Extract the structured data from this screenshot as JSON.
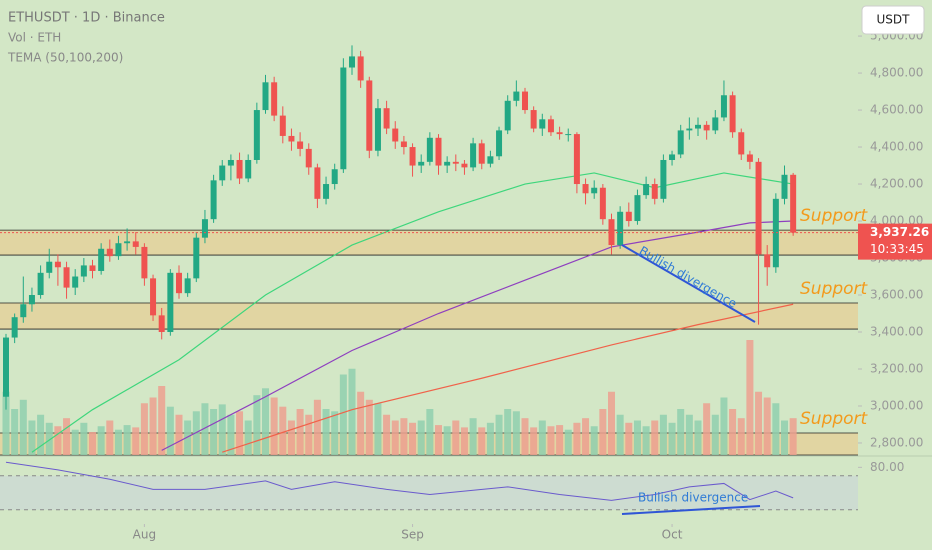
{
  "chart_data": {
    "type": "candlestick",
    "title": "ETHUSDT · 1D · Binance",
    "volume_label": "Vol · ETH",
    "ma_label": "TEMA (50,100,200)",
    "currency_button": "USDT",
    "ylim": [
      2735,
      5195
    ],
    "yticks": [
      {
        "value": 2800,
        "label": "2,800.00"
      },
      {
        "value": 3000,
        "label": "3,000.00"
      },
      {
        "value": 3200,
        "label": "3,200.00"
      },
      {
        "value": 3400,
        "label": "3,400.00"
      },
      {
        "value": 3600,
        "label": "3,600.00"
      },
      {
        "value": 3800,
        "label": "3,800.00"
      },
      {
        "value": 4000,
        "label": "4,000.00"
      },
      {
        "value": 4200,
        "label": "4,200.00"
      },
      {
        "value": 4400,
        "label": "4,400.00"
      },
      {
        "value": 4600,
        "label": "4,600.00"
      },
      {
        "value": 4800,
        "label": "4,800.00"
      },
      {
        "value": 5000,
        "label": "5,000.00"
      }
    ],
    "xticks": [
      {
        "value": 16,
        "label": "Aug"
      },
      {
        "value": 47,
        "label": "Sep"
      },
      {
        "value": 77,
        "label": "Oct"
      }
    ],
    "up_color": "#22a884",
    "down_color": "#ef5350",
    "candles": [
      [
        3050,
        3390,
        2980,
        3370
      ],
      [
        3370,
        3500,
        3340,
        3480
      ],
      [
        3480,
        3700,
        3450,
        3550
      ],
      [
        3550,
        3640,
        3510,
        3600
      ],
      [
        3600,
        3760,
        3580,
        3720
      ],
      [
        3720,
        3850,
        3690,
        3780
      ],
      [
        3780,
        3820,
        3650,
        3750
      ],
      [
        3750,
        3780,
        3580,
        3640
      ],
      [
        3640,
        3740,
        3600,
        3700
      ],
      [
        3700,
        3800,
        3670,
        3760
      ],
      [
        3760,
        3790,
        3690,
        3730
      ],
      [
        3730,
        3880,
        3710,
        3850
      ],
      [
        3850,
        3900,
        3780,
        3810
      ],
      [
        3810,
        3920,
        3790,
        3880
      ],
      [
        3880,
        3960,
        3840,
        3890
      ],
      [
        3890,
        3940,
        3820,
        3860
      ],
      [
        3860,
        3880,
        3650,
        3690
      ],
      [
        3690,
        3710,
        3460,
        3490
      ],
      [
        3490,
        3530,
        3360,
        3400
      ],
      [
        3400,
        3740,
        3380,
        3720
      ],
      [
        3720,
        3760,
        3580,
        3610
      ],
      [
        3610,
        3720,
        3590,
        3690
      ],
      [
        3690,
        3940,
        3670,
        3910
      ],
      [
        3910,
        4060,
        3880,
        4010
      ],
      [
        4010,
        4250,
        3990,
        4220
      ],
      [
        4220,
        4330,
        4190,
        4300
      ],
      [
        4300,
        4360,
        4220,
        4330
      ],
      [
        4330,
        4370,
        4200,
        4230
      ],
      [
        4230,
        4360,
        4210,
        4330
      ],
      [
        4330,
        4640,
        4310,
        4600
      ],
      [
        4600,
        4790,
        4580,
        4750
      ],
      [
        4750,
        4780,
        4540,
        4570
      ],
      [
        4570,
        4620,
        4420,
        4460
      ],
      [
        4460,
        4500,
        4380,
        4430
      ],
      [
        4430,
        4480,
        4350,
        4390
      ],
      [
        4390,
        4420,
        4250,
        4290
      ],
      [
        4290,
        4310,
        4070,
        4120
      ],
      [
        4120,
        4240,
        4090,
        4200
      ],
      [
        4200,
        4310,
        4170,
        4280
      ],
      [
        4280,
        4880,
        4260,
        4830
      ],
      [
        4830,
        4950,
        4790,
        4890
      ],
      [
        4890,
        4920,
        4720,
        4760
      ],
      [
        4760,
        4780,
        4340,
        4380
      ],
      [
        4380,
        4660,
        4350,
        4610
      ],
      [
        4610,
        4650,
        4470,
        4500
      ],
      [
        4500,
        4540,
        4390,
        4430
      ],
      [
        4430,
        4460,
        4360,
        4400
      ],
      [
        4400,
        4420,
        4240,
        4300
      ],
      [
        4300,
        4360,
        4260,
        4320
      ],
      [
        4320,
        4480,
        4300,
        4450
      ],
      [
        4450,
        4470,
        4250,
        4300
      ],
      [
        4300,
        4350,
        4260,
        4320
      ],
      [
        4320,
        4360,
        4270,
        4310
      ],
      [
        4310,
        4330,
        4250,
        4290
      ],
      [
        4290,
        4450,
        4270,
        4420
      ],
      [
        4420,
        4440,
        4280,
        4310
      ],
      [
        4310,
        4380,
        4290,
        4350
      ],
      [
        4350,
        4510,
        4330,
        4490
      ],
      [
        4490,
        4680,
        4470,
        4650
      ],
      [
        4650,
        4760,
        4620,
        4700
      ],
      [
        4700,
        4720,
        4580,
        4600
      ],
      [
        4600,
        4620,
        4480,
        4500
      ],
      [
        4500,
        4580,
        4460,
        4550
      ],
      [
        4550,
        4570,
        4460,
        4480
      ],
      [
        4480,
        4510,
        4440,
        4470
      ],
      [
        4470,
        4500,
        4430,
        4470
      ],
      [
        4470,
        4480,
        4150,
        4200
      ],
      [
        4200,
        4230,
        4090,
        4150
      ],
      [
        4150,
        4220,
        4120,
        4180
      ],
      [
        4180,
        4200,
        3980,
        4010
      ],
      [
        4010,
        4040,
        3820,
        3870
      ],
      [
        3870,
        4080,
        3850,
        4050
      ],
      [
        4050,
        4100,
        3970,
        4000
      ],
      [
        4000,
        4170,
        3980,
        4140
      ],
      [
        4140,
        4240,
        4120,
        4200
      ],
      [
        4200,
        4230,
        4090,
        4120
      ],
      [
        4120,
        4360,
        4100,
        4330
      ],
      [
        4330,
        4380,
        4300,
        4360
      ],
      [
        4360,
        4520,
        4340,
        4490
      ],
      [
        4490,
        4560,
        4440,
        4500
      ],
      [
        4500,
        4560,
        4460,
        4520
      ],
      [
        4520,
        4540,
        4440,
        4490
      ],
      [
        4490,
        4600,
        4470,
        4560
      ],
      [
        4560,
        4760,
        4540,
        4680
      ],
      [
        4680,
        4700,
        4450,
        4480
      ],
      [
        4480,
        4500,
        4330,
        4360
      ],
      [
        4360,
        4380,
        4280,
        4320
      ],
      [
        4320,
        4340,
        3440,
        3820
      ],
      [
        3820,
        3870,
        3650,
        3750
      ],
      [
        3750,
        4150,
        3720,
        4120
      ],
      [
        4120,
        4300,
        4090,
        4250
      ],
      [
        4250,
        4260,
        3920,
        3937.26
      ]
    ],
    "volume": [
      55,
      40,
      48,
      30,
      35,
      28,
      25,
      32,
      22,
      28,
      20,
      25,
      30,
      22,
      26,
      24,
      45,
      50,
      60,
      42,
      35,
      30,
      38,
      45,
      40,
      44,
      35,
      38,
      30,
      52,
      58,
      50,
      42,
      30,
      40,
      35,
      48,
      40,
      38,
      70,
      75,
      55,
      48,
      45,
      35,
      30,
      32,
      28,
      30,
      40,
      26,
      25,
      30,
      24,
      32,
      24,
      28,
      35,
      40,
      38,
      32,
      24,
      30,
      25,
      26,
      22,
      28,
      32,
      25,
      40,
      55,
      35,
      28,
      30,
      25,
      30,
      35,
      28,
      40,
      35,
      30,
      45,
      35,
      50,
      40,
      32,
      100,
      55,
      50,
      45,
      30,
      32
    ],
    "volume_ylim": [
      0,
      100
    ],
    "lines": [
      {
        "name": "TEMA 50",
        "color": "#3ed67c",
        "x": [
          3,
          10,
          20,
          30,
          40,
          50,
          60,
          68,
          75,
          83,
          87,
          91
        ],
        "values": [
          2750,
          2980,
          3250,
          3600,
          3870,
          4050,
          4200,
          4260,
          4180,
          4260,
          4230,
          4200
        ]
      },
      {
        "name": "TEMA 100",
        "color": "#8e3fbf",
        "x": [
          18,
          30,
          40,
          50,
          60,
          70,
          80,
          86,
          91
        ],
        "values": [
          2760,
          3050,
          3300,
          3500,
          3680,
          3860,
          3940,
          3990,
          4000
        ]
      },
      {
        "name": "TEMA 200",
        "color": "#f0624a",
        "x": [
          25,
          40,
          55,
          70,
          80,
          91
        ],
        "values": [
          2750,
          2980,
          3150,
          3330,
          3440,
          3550
        ]
      }
    ],
    "zones": [
      {
        "lo": 3816,
        "hi": 3951,
        "label": "Support"
      },
      {
        "lo": 3416,
        "hi": 3557,
        "label": "Support"
      },
      {
        "lo": 2735,
        "hi": 2854,
        "label": "Support"
      }
    ],
    "last_price": {
      "value": 3937.26,
      "label": "3,937.26"
    },
    "countdown": "10:33:45",
    "annotations": [
      "Bullish divergence",
      "Bullish divergence"
    ],
    "rsi": {
      "ylim": [
        12,
        91
      ],
      "yticks": [
        {
          "value": 80,
          "label": "80.00"
        }
      ],
      "levels": [
        70,
        30
      ],
      "color": "#6a5acd",
      "x": [
        0,
        6,
        12,
        17,
        23,
        30,
        33,
        38,
        44,
        49,
        58,
        64,
        70,
        75,
        79,
        83,
        86,
        89,
        91
      ],
      "values": [
        86,
        77,
        66,
        54,
        54,
        64,
        54,
        63,
        54,
        48,
        57,
        48,
        41,
        48,
        57,
        61,
        42,
        52,
        44
      ]
    }
  }
}
